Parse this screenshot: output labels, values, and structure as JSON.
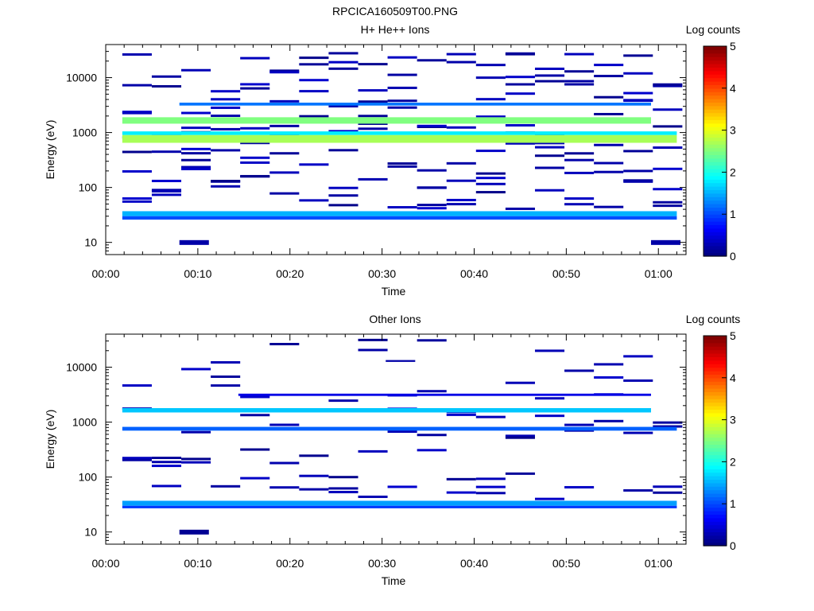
{
  "figure_title": "RPCICA160509T00.PNG",
  "chart_data": [
    {
      "type": "heatmap",
      "title": "H+ He++ Ions",
      "xlabel": "Time",
      "ylabel": "Energy (eV)",
      "xlim": [
        "00:00",
        "01:03"
      ],
      "ylim": [
        6,
        40000
      ],
      "yscale": "log",
      "x_ticks": [
        "00:00",
        "00:10",
        "00:20",
        "00:30",
        "00:40",
        "00:50",
        "01:00"
      ],
      "y_ticks": [
        "10",
        "100",
        "1000",
        "10000"
      ],
      "colorbar": {
        "label": "Log counts",
        "range": [
          0,
          5
        ],
        "ticks": [
          "0",
          "1",
          "2",
          "3",
          "4",
          "5"
        ],
        "colormap": "jet"
      },
      "bands": [
        {
          "e_lo": 1450,
          "e_hi": 1900,
          "t_start": 1.8,
          "t_end": 59.2,
          "value": 2.5
        },
        {
          "e_lo": 900,
          "e_hi": 1050,
          "t_start": 1.8,
          "t_end": 62.0,
          "value": 1.8
        },
        {
          "e_lo": 650,
          "e_hi": 900,
          "t_start": 1.8,
          "t_end": 62.0,
          "value": 2.7
        },
        {
          "e_lo": 3100,
          "e_hi": 3500,
          "t_start": 8.0,
          "t_end": 59.2,
          "value": 1.2
        },
        {
          "e_lo": 30,
          "e_hi": 37,
          "t_start": 1.8,
          "t_end": 62.0,
          "value": 1.5
        },
        {
          "e_lo": 26,
          "e_hi": 30,
          "t_start": 1.8,
          "t_end": 62.0,
          "value": 1.0
        },
        {
          "e_lo": 9,
          "e_hi": 11,
          "t_start": 8.0,
          "t_end": 11.2,
          "value": 0.2
        },
        {
          "e_lo": 9,
          "e_hi": 11,
          "t_start": 59.2,
          "t_end": 62.4,
          "value": 0.2
        }
      ]
    },
    {
      "type": "heatmap",
      "title": "Other Ions",
      "xlabel": "Time",
      "ylabel": "Energy (eV)",
      "xlim": [
        "00:00",
        "01:03"
      ],
      "ylim": [
        6,
        40000
      ],
      "yscale": "log",
      "x_ticks": [
        "00:00",
        "00:10",
        "00:20",
        "00:30",
        "00:40",
        "00:50",
        "01:00"
      ],
      "y_ticks": [
        "10",
        "100",
        "1000",
        "10000"
      ],
      "colorbar": {
        "label": "Log counts",
        "range": [
          0,
          5
        ],
        "ticks": [
          "0",
          "1",
          "2",
          "3",
          "4",
          "5"
        ],
        "colormap": "jet"
      },
      "bands": [
        {
          "e_lo": 1500,
          "e_hi": 1800,
          "t_start": 1.8,
          "t_end": 59.2,
          "value": 1.6
        },
        {
          "e_lo": 700,
          "e_hi": 820,
          "t_start": 1.8,
          "t_end": 62.0,
          "value": 1.1
        },
        {
          "e_lo": 3000,
          "e_hi": 3300,
          "t_start": 14.4,
          "t_end": 59.2,
          "value": 0.5
        },
        {
          "e_lo": 30,
          "e_hi": 37,
          "t_start": 1.8,
          "t_end": 62.0,
          "value": 1.4
        },
        {
          "e_lo": 27,
          "e_hi": 30,
          "t_start": 1.8,
          "t_end": 62.0,
          "value": 0.9
        },
        {
          "e_lo": 9,
          "e_hi": 11,
          "t_start": 8.0,
          "t_end": 11.2,
          "value": 0.1
        },
        {
          "e_lo": 12500,
          "e_hi": 13500,
          "t_start": 30.4,
          "t_end": 33.6,
          "value": 0.2
        }
      ]
    }
  ]
}
